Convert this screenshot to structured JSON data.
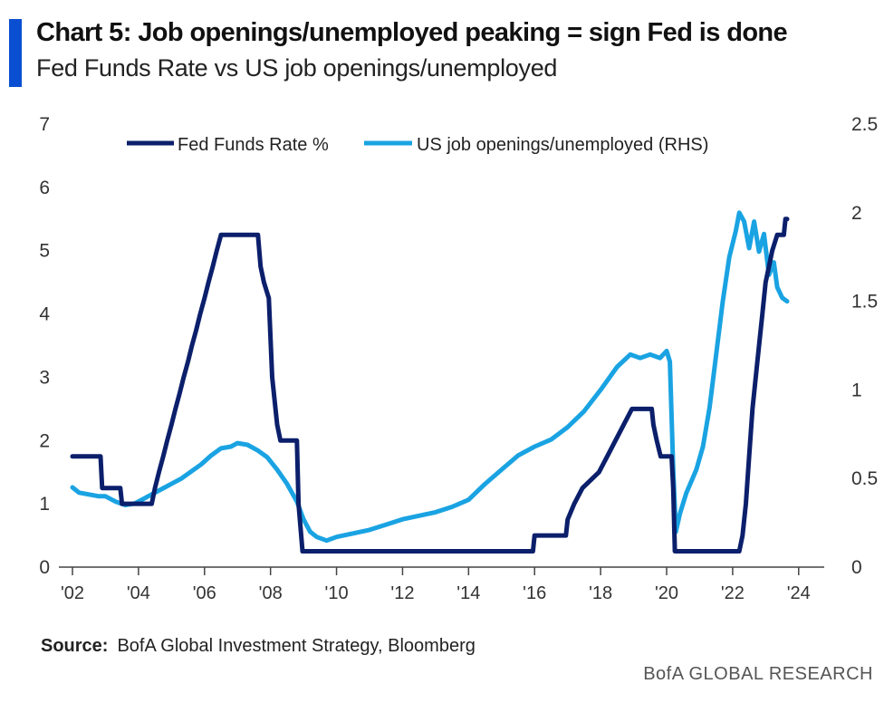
{
  "header": {
    "title": "Chart 5: Job openings/unemployed peaking = sign Fed is done",
    "subtitle": "Fed Funds Rate vs US job openings/unemployed"
  },
  "footer": {
    "source_label": "Source:",
    "source_text": "BofA Global Investment Strategy, Bloomberg",
    "brand": "BofA GLOBAL RESEARCH"
  },
  "colors": {
    "accent": "#0a4fd1",
    "fed": "#0b1f6b",
    "jobs": "#1aa3e2",
    "axis": "#444444"
  },
  "chart_data": {
    "type": "line",
    "title": "Chart 5: Job openings/unemployed peaking = sign Fed is done",
    "subtitle": "Fed Funds Rate vs US job openings/unemployed",
    "x_range": [
      2002,
      2024.5
    ],
    "x_ticks": [
      2002,
      2004,
      2006,
      2008,
      2010,
      2012,
      2014,
      2016,
      2018,
      2020,
      2022,
      2024
    ],
    "x_tick_labels": [
      "'02",
      "'04",
      "'06",
      "'08",
      "'10",
      "'12",
      "'14",
      "'16",
      "'18",
      "'20",
      "'22",
      "'24"
    ],
    "y_left": {
      "range": [
        0,
        7
      ],
      "ticks": [
        0,
        1,
        2,
        3,
        4,
        5,
        6,
        7
      ]
    },
    "y_right": {
      "range": [
        0,
        2.5
      ],
      "ticks": [
        0,
        0.5,
        1,
        1.5,
        2,
        2.5
      ],
      "tick_labels": [
        "0",
        "0.5",
        "1",
        "1.5",
        "2",
        "2.5"
      ]
    },
    "legend": {
      "placement": "top"
    },
    "series": [
      {
        "name": "Fed Funds Rate %",
        "axis": "left",
        "points": [
          [
            2002.0,
            1.75
          ],
          [
            2002.85,
            1.75
          ],
          [
            2002.9,
            1.25
          ],
          [
            2003.45,
            1.25
          ],
          [
            2003.5,
            1.0
          ],
          [
            2004.4,
            1.0
          ],
          [
            2004.5,
            1.25
          ],
          [
            2004.62,
            1.5
          ],
          [
            2004.75,
            1.75
          ],
          [
            2004.87,
            2.0
          ],
          [
            2005.0,
            2.25
          ],
          [
            2005.12,
            2.5
          ],
          [
            2005.25,
            2.75
          ],
          [
            2005.37,
            3.0
          ],
          [
            2005.5,
            3.25
          ],
          [
            2005.62,
            3.5
          ],
          [
            2005.75,
            3.75
          ],
          [
            2005.87,
            4.0
          ],
          [
            2006.0,
            4.25
          ],
          [
            2006.12,
            4.5
          ],
          [
            2006.25,
            4.75
          ],
          [
            2006.37,
            5.0
          ],
          [
            2006.5,
            5.25
          ],
          [
            2007.62,
            5.25
          ],
          [
            2007.7,
            4.75
          ],
          [
            2007.8,
            4.5
          ],
          [
            2007.95,
            4.25
          ],
          [
            2008.05,
            3.0
          ],
          [
            2008.2,
            2.25
          ],
          [
            2008.3,
            2.0
          ],
          [
            2008.8,
            2.0
          ],
          [
            2008.85,
            1.0
          ],
          [
            2008.97,
            0.25
          ],
          [
            2015.95,
            0.25
          ],
          [
            2016.0,
            0.5
          ],
          [
            2016.95,
            0.5
          ],
          [
            2017.0,
            0.75
          ],
          [
            2017.2,
            1.0
          ],
          [
            2017.45,
            1.25
          ],
          [
            2017.95,
            1.5
          ],
          [
            2018.2,
            1.75
          ],
          [
            2018.45,
            2.0
          ],
          [
            2018.7,
            2.25
          ],
          [
            2018.95,
            2.5
          ],
          [
            2019.55,
            2.5
          ],
          [
            2019.6,
            2.25
          ],
          [
            2019.7,
            2.0
          ],
          [
            2019.82,
            1.75
          ],
          [
            2020.15,
            1.75
          ],
          [
            2020.2,
            1.25
          ],
          [
            2020.25,
            0.25
          ],
          [
            2022.2,
            0.25
          ],
          [
            2022.3,
            0.5
          ],
          [
            2022.4,
            1.0
          ],
          [
            2022.5,
            1.75
          ],
          [
            2022.6,
            2.5
          ],
          [
            2022.75,
            3.25
          ],
          [
            2022.9,
            4.0
          ],
          [
            2023.0,
            4.5
          ],
          [
            2023.1,
            4.75
          ],
          [
            2023.2,
            5.0
          ],
          [
            2023.35,
            5.25
          ],
          [
            2023.55,
            5.25
          ],
          [
            2023.6,
            5.5
          ],
          [
            2023.65,
            5.5
          ]
        ]
      },
      {
        "name": "US job openings/unemployed (RHS)",
        "axis": "right",
        "points": [
          [
            2002.0,
            0.45
          ],
          [
            2002.2,
            0.42
          ],
          [
            2002.5,
            0.41
          ],
          [
            2002.8,
            0.4
          ],
          [
            2003.0,
            0.4
          ],
          [
            2003.3,
            0.37
          ],
          [
            2003.6,
            0.35
          ],
          [
            2003.9,
            0.36
          ],
          [
            2004.2,
            0.39
          ],
          [
            2004.5,
            0.42
          ],
          [
            2004.8,
            0.45
          ],
          [
            2005.0,
            0.47
          ],
          [
            2005.3,
            0.5
          ],
          [
            2005.6,
            0.54
          ],
          [
            2005.9,
            0.58
          ],
          [
            2006.2,
            0.63
          ],
          [
            2006.5,
            0.67
          ],
          [
            2006.8,
            0.68
          ],
          [
            2007.0,
            0.7
          ],
          [
            2007.3,
            0.69
          ],
          [
            2007.6,
            0.66
          ],
          [
            2007.9,
            0.62
          ],
          [
            2008.2,
            0.55
          ],
          [
            2008.5,
            0.47
          ],
          [
            2008.8,
            0.37
          ],
          [
            2009.0,
            0.27
          ],
          [
            2009.2,
            0.2
          ],
          [
            2009.4,
            0.17
          ],
          [
            2009.7,
            0.15
          ],
          [
            2010.0,
            0.17
          ],
          [
            2010.5,
            0.19
          ],
          [
            2011.0,
            0.21
          ],
          [
            2011.5,
            0.24
          ],
          [
            2012.0,
            0.27
          ],
          [
            2012.5,
            0.29
          ],
          [
            2013.0,
            0.31
          ],
          [
            2013.5,
            0.34
          ],
          [
            2014.0,
            0.38
          ],
          [
            2014.5,
            0.47
          ],
          [
            2015.0,
            0.55
          ],
          [
            2015.5,
            0.63
          ],
          [
            2016.0,
            0.68
          ],
          [
            2016.5,
            0.72
          ],
          [
            2017.0,
            0.79
          ],
          [
            2017.5,
            0.88
          ],
          [
            2018.0,
            1.0
          ],
          [
            2018.5,
            1.13
          ],
          [
            2018.9,
            1.2
          ],
          [
            2019.2,
            1.18
          ],
          [
            2019.5,
            1.2
          ],
          [
            2019.8,
            1.18
          ],
          [
            2020.0,
            1.22
          ],
          [
            2020.1,
            1.16
          ],
          [
            2020.2,
            0.55
          ],
          [
            2020.28,
            0.2
          ],
          [
            2020.4,
            0.3
          ],
          [
            2020.6,
            0.42
          ],
          [
            2020.9,
            0.55
          ],
          [
            2021.1,
            0.68
          ],
          [
            2021.3,
            0.9
          ],
          [
            2021.5,
            1.2
          ],
          [
            2021.7,
            1.5
          ],
          [
            2021.9,
            1.75
          ],
          [
            2022.1,
            1.9
          ],
          [
            2022.2,
            2.0
          ],
          [
            2022.35,
            1.95
          ],
          [
            2022.5,
            1.8
          ],
          [
            2022.65,
            1.95
          ],
          [
            2022.8,
            1.78
          ],
          [
            2022.95,
            1.88
          ],
          [
            2023.1,
            1.65
          ],
          [
            2023.25,
            1.72
          ],
          [
            2023.35,
            1.58
          ],
          [
            2023.5,
            1.52
          ],
          [
            2023.65,
            1.5
          ]
        ]
      }
    ]
  }
}
